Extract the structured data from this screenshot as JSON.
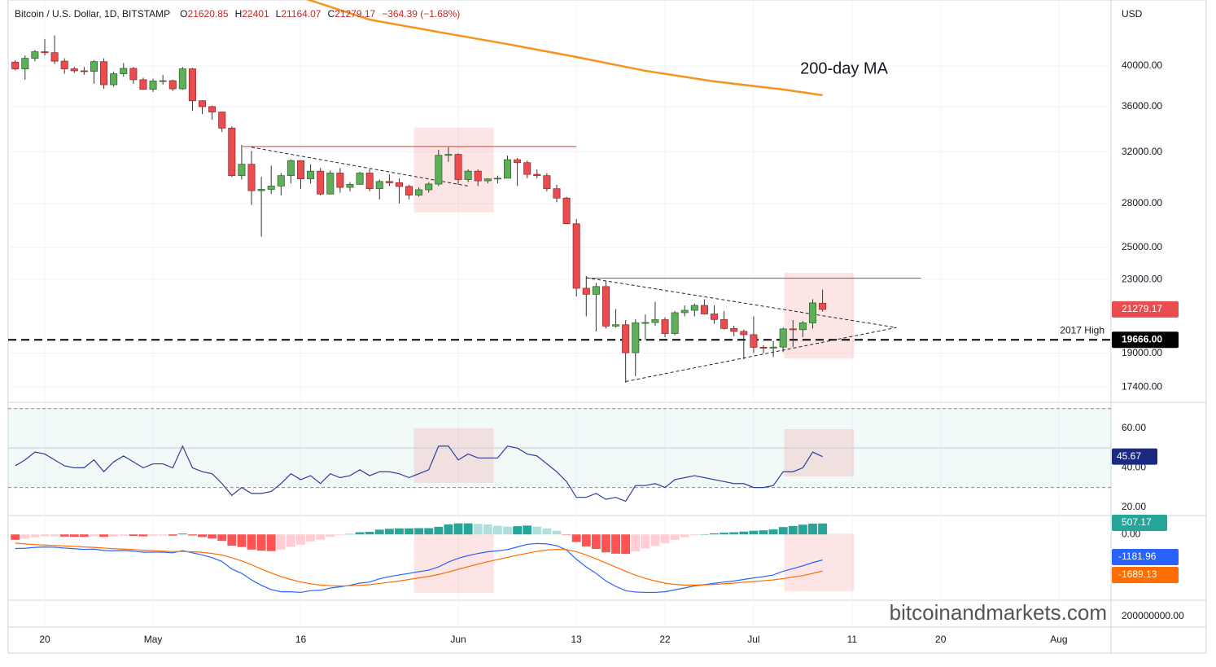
{
  "chart_data": {
    "type": "candlestick",
    "header": {
      "symbol": "Bitcoin / U.S. Dollar, 1D, BITSTAMP",
      "ohlc_prefixes": [
        "O",
        "H",
        "L",
        "C"
      ],
      "change": "−364.39 (−1.68%)"
    },
    "currency": "USD",
    "watermark": "bitcoinandmarkets.com",
    "up_color": "#5fae5a",
    "down_color": "#ea4d4f",
    "log_scale": true,
    "xlim": [
      -0.72,
      111.3
    ],
    "xticks": [
      {
        "value": 3,
        "label": "20"
      },
      {
        "value": 14,
        "label": "May"
      },
      {
        "value": 29,
        "label": "16"
      },
      {
        "value": 45,
        "label": "Jun"
      },
      {
        "value": 57,
        "label": "13"
      },
      {
        "value": 66,
        "label": "22"
      },
      {
        "value": 75,
        "label": "Jul"
      },
      {
        "value": 85,
        "label": "11"
      },
      {
        "value": 94,
        "label": "20"
      },
      {
        "value": 106,
        "label": "Aug"
      }
    ],
    "ylim": [
      16760,
      47460
    ],
    "yticks": [
      {
        "value": 40000,
        "label": "40000.00"
      },
      {
        "value": 36000,
        "label": "36000.00"
      },
      {
        "value": 32000,
        "label": "32000.00"
      },
      {
        "value": 28000,
        "label": "28000.00"
      },
      {
        "value": 25000,
        "label": "25000.00"
      },
      {
        "value": 23000,
        "label": "23000.00"
      },
      {
        "value": 19000,
        "label": "19000.00"
      },
      {
        "value": 17400,
        "label": "17400.00"
      }
    ],
    "grid": true,
    "candles": [
      [
        40400,
        40600,
        39550,
        39700
      ],
      [
        39700,
        41100,
        38600,
        40800
      ],
      [
        40800,
        41700,
        40500,
        41500
      ],
      [
        41500,
        42900,
        41100,
        41400
      ],
      [
        41400,
        43300,
        40200,
        40500
      ],
      [
        40500,
        40800,
        39200,
        39700
      ],
      [
        39700,
        39900,
        39300,
        39500
      ],
      [
        39500,
        39900,
        39100,
        39450
      ],
      [
        39450,
        40600,
        38200,
        40450
      ],
      [
        40450,
        40800,
        37700,
        38100
      ],
      [
        38100,
        39400,
        37900,
        39200
      ],
      [
        39200,
        40300,
        38900,
        39750
      ],
      [
        39750,
        39900,
        38200,
        38600
      ],
      [
        38600,
        38800,
        37600,
        37650
      ],
      [
        37650,
        38700,
        37400,
        38470
      ],
      [
        38470,
        39100,
        38100,
        38500
      ],
      [
        38500,
        38600,
        37500,
        37700
      ],
      [
        37700,
        39900,
        37600,
        39700
      ],
      [
        39700,
        39800,
        35600,
        36550
      ],
      [
        36550,
        36600,
        35300,
        36000
      ],
      [
        36000,
        36100,
        34800,
        35500
      ],
      [
        35500,
        35500,
        33700,
        34050
      ],
      [
        34050,
        34200,
        30000,
        30100
      ],
      [
        30100,
        32600,
        29800,
        31000
      ],
      [
        31000,
        32100,
        27900,
        28950
      ],
      [
        28950,
        30000,
        25700,
        29050
      ],
      [
        29050,
        30900,
        28700,
        29300
      ],
      [
        29300,
        30300,
        28600,
        30100
      ],
      [
        30100,
        31400,
        29500,
        31300
      ],
      [
        31300,
        31300,
        29100,
        29850
      ],
      [
        29850,
        31000,
        29500,
        30450
      ],
      [
        30450,
        30700,
        28600,
        28700
      ],
      [
        28700,
        30500,
        28700,
        30300
      ],
      [
        30300,
        30700,
        28800,
        29200
      ],
      [
        29200,
        29600,
        28900,
        29430
      ],
      [
        29430,
        30400,
        29400,
        30300
      ],
      [
        30300,
        30600,
        28900,
        29100
      ],
      [
        29100,
        29800,
        28300,
        29650
      ],
      [
        29650,
        30200,
        29300,
        29550
      ],
      [
        29550,
        29900,
        28000,
        29270
      ],
      [
        29270,
        29400,
        28300,
        28620
      ],
      [
        28620,
        29200,
        28500,
        29020
      ],
      [
        29020,
        29600,
        28800,
        29450
      ],
      [
        29450,
        32200,
        29300,
        31730
      ],
      [
        31730,
        32400,
        31200,
        31800
      ],
      [
        31800,
        31900,
        29400,
        29800
      ],
      [
        29800,
        30600,
        29600,
        30450
      ],
      [
        30450,
        30600,
        29300,
        29700
      ],
      [
        29700,
        29900,
        29500,
        29850
      ],
      [
        29850,
        30100,
        29500,
        29900
      ],
      [
        29900,
        31700,
        29900,
        31370
      ],
      [
        31370,
        31500,
        29300,
        31130
      ],
      [
        31130,
        31300,
        29900,
        30200
      ],
      [
        30200,
        30600,
        29900,
        30100
      ],
      [
        30100,
        30300,
        28900,
        29100
      ],
      [
        29100,
        29400,
        28100,
        28400
      ],
      [
        28400,
        28500,
        26600,
        26570
      ],
      [
        26570,
        26900,
        22000,
        22480
      ],
      [
        22480,
        23200,
        20900,
        22130
      ],
      [
        22130,
        22800,
        20100,
        22580
      ],
      [
        22580,
        22900,
        20250,
        20380
      ],
      [
        20380,
        21300,
        20300,
        20450
      ],
      [
        20450,
        20700,
        17600,
        19020
      ],
      [
        19020,
        20750,
        17900,
        20550
      ],
      [
        20550,
        21000,
        19650,
        20570
      ],
      [
        20570,
        21700,
        20400,
        20720
      ],
      [
        20720,
        20850,
        19800,
        19990
      ],
      [
        19990,
        21200,
        19900,
        21100
      ],
      [
        21100,
        21500,
        20900,
        21230
      ],
      [
        21230,
        21600,
        20900,
        21500
      ],
      [
        21500,
        21850,
        21000,
        21030
      ],
      [
        21030,
        21500,
        20500,
        20730
      ],
      [
        20730,
        21200,
        20200,
        20250
      ],
      [
        20250,
        20400,
        19850,
        20100
      ],
      [
        20100,
        20200,
        18700,
        19930
      ],
      [
        19930,
        20900,
        19000,
        19290
      ],
      [
        19290,
        19400,
        19000,
        19250
      ],
      [
        19250,
        19600,
        18800,
        19300
      ],
      [
        19300,
        20300,
        19050,
        20230
      ],
      [
        20230,
        20700,
        19300,
        20190
      ],
      [
        20190,
        20650,
        19800,
        20550
      ],
      [
        20550,
        21850,
        20250,
        21640
      ],
      [
        21620.85,
        22401,
        21164.07,
        21279.17
      ]
    ],
    "moving_average": {
      "name": "200-day MA",
      "color": "#f7931a",
      "x": [
        29,
        36,
        43,
        50,
        57,
        64,
        71,
        78,
        82
      ],
      "values": [
        47800,
        45100,
        43680,
        42330,
        40940,
        39500,
        38430,
        37630,
        37080
      ]
    },
    "resistance_lines": [
      {
        "color": "#e53935",
        "x": [
          23.1,
          57
        ],
        "y": [
          32460,
          32460
        ]
      },
      {
        "color": "#e53935",
        "x": [
          58,
          92
        ],
        "y": [
          23080,
          23080
        ]
      }
    ],
    "trend_lines": [
      {
        "x": [
          24,
          46
        ],
        "y": [
          32400,
          29300
        ]
      },
      {
        "x": [
          58,
          89.5
        ],
        "y": [
          23100,
          20300
        ]
      },
      {
        "x": [
          62,
          89.5
        ],
        "y": [
          17650,
          20300
        ]
      }
    ],
    "reference_line": {
      "name": "2017 High",
      "value": 19666,
      "label": "19666.00"
    },
    "highlights": [
      {
        "x": [
          40.5,
          48.6
        ],
        "price": [
          27370,
          34100
        ],
        "rsi": [
          32.3,
          60
        ],
        "macd": [
          -2700,
          38
        ]
      },
      {
        "x": [
          78.1,
          85.2
        ],
        "price": [
          18730,
          23400
        ],
        "rsi": [
          35.6,
          59.6
        ],
        "macd": [
          -2620,
          38
        ]
      }
    ],
    "rsi": {
      "color": "#2a3f9a",
      "ylim": [
        16.2,
        72.8
      ],
      "yticks": [
        {
          "value": 60,
          "label": "60.00"
        },
        {
          "value": 40,
          "label": "40.00"
        },
        {
          "value": 20,
          "label": "20.00"
        }
      ],
      "levels": [
        70,
        50,
        30
      ],
      "values": [
        41,
        44,
        48,
        47,
        44,
        41,
        40,
        40,
        44,
        38,
        43,
        46,
        43,
        40,
        42,
        42,
        40,
        51,
        40,
        38,
        37,
        32,
        26,
        30,
        27,
        27,
        28,
        32,
        37,
        34,
        36,
        32,
        37,
        35,
        36,
        39,
        36,
        38,
        38,
        37,
        35,
        37,
        39,
        51,
        51,
        44,
        47,
        45,
        45,
        45,
        51,
        50,
        47,
        46,
        42,
        38,
        33,
        25,
        25,
        27,
        24,
        25,
        23,
        31,
        31,
        32,
        30,
        34,
        35,
        36,
        35,
        34,
        33,
        32,
        32,
        30,
        30,
        31,
        38,
        38,
        40,
        48,
        45.67
      ]
    },
    "macd": {
      "ylim": [
        -3002,
        798
      ],
      "yticks": [
        {
          "value": 0,
          "label": "0.00"
        }
      ],
      "lower_label": "200000000.00",
      "hist_colors": [
        "#26a69a",
        "#b2dfdb",
        "#ff5252",
        "#ffcdd2"
      ],
      "histogram": [
        -250,
        -200,
        -130,
        -90,
        -80,
        -100,
        -110,
        -110,
        -80,
        -110,
        -100,
        -60,
        -70,
        -90,
        -70,
        -50,
        -60,
        40,
        -50,
        -120,
        -190,
        -300,
        -520,
        -580,
        -700,
        -750,
        -770,
        -700,
        -570,
        -480,
        -320,
        -240,
        -110,
        -40,
        20,
        100,
        120,
        220,
        260,
        280,
        280,
        290,
        290,
        350,
        460,
        510,
        510,
        490,
        460,
        400,
        360,
        380,
        410,
        360,
        280,
        170,
        -20,
        -350,
        -550,
        -670,
        -830,
        -890,
        -900,
        -780,
        -650,
        -530,
        -400,
        -250,
        -130,
        -40,
        10,
        50,
        80,
        100,
        130,
        170,
        190,
        230,
        340,
        390,
        450,
        500,
        507.17
      ],
      "series": [
        {
          "color": "#2962ff",
          "values": [
            -650,
            -640,
            -600,
            -580,
            -590,
            -630,
            -660,
            -690,
            -680,
            -740,
            -760,
            -740,
            -770,
            -820,
            -820,
            -820,
            -850,
            -750,
            -850,
            -950,
            -1070,
            -1250,
            -1600,
            -1800,
            -2100,
            -2350,
            -2550,
            -2650,
            -2650,
            -2680,
            -2600,
            -2580,
            -2480,
            -2420,
            -2350,
            -2250,
            -2200,
            -2050,
            -1950,
            -1870,
            -1800,
            -1720,
            -1650,
            -1500,
            -1280,
            -1100,
            -980,
            -880,
            -800,
            -760,
            -700,
            -580,
            -460,
            -420,
            -440,
            -520,
            -720,
            -1150,
            -1500,
            -1800,
            -2150,
            -2400,
            -2600,
            -2660,
            -2680,
            -2680,
            -2650,
            -2560,
            -2470,
            -2380,
            -2320,
            -2260,
            -2200,
            -2150,
            -2080,
            -2010,
            -1950,
            -1870,
            -1700,
            -1580,
            -1450,
            -1300,
            -1181.96
          ]
        },
        {
          "color": "#ff6d00",
          "values": [
            -400,
            -440,
            -470,
            -490,
            -510,
            -530,
            -550,
            -580,
            -600,
            -630,
            -660,
            -680,
            -700,
            -730,
            -750,
            -770,
            -790,
            -790,
            -800,
            -830,
            -880,
            -950,
            -1080,
            -1220,
            -1400,
            -1600,
            -1780,
            -1950,
            -2080,
            -2200,
            -2280,
            -2340,
            -2370,
            -2380,
            -2370,
            -2350,
            -2320,
            -2270,
            -2210,
            -2150,
            -2080,
            -2010,
            -1940,
            -1850,
            -1740,
            -1610,
            -1490,
            -1370,
            -1260,
            -1160,
            -1060,
            -960,
            -870,
            -780,
            -720,
            -690,
            -700,
            -800,
            -950,
            -1130,
            -1320,
            -1510,
            -1700,
            -1880,
            -2030,
            -2150,
            -2250,
            -2310,
            -2340,
            -2340,
            -2330,
            -2310,
            -2280,
            -2250,
            -2210,
            -2180,
            -2140,
            -2100,
            -2040,
            -1970,
            -1900,
            -1800,
            -1689.13
          ]
        }
      ]
    }
  }
}
